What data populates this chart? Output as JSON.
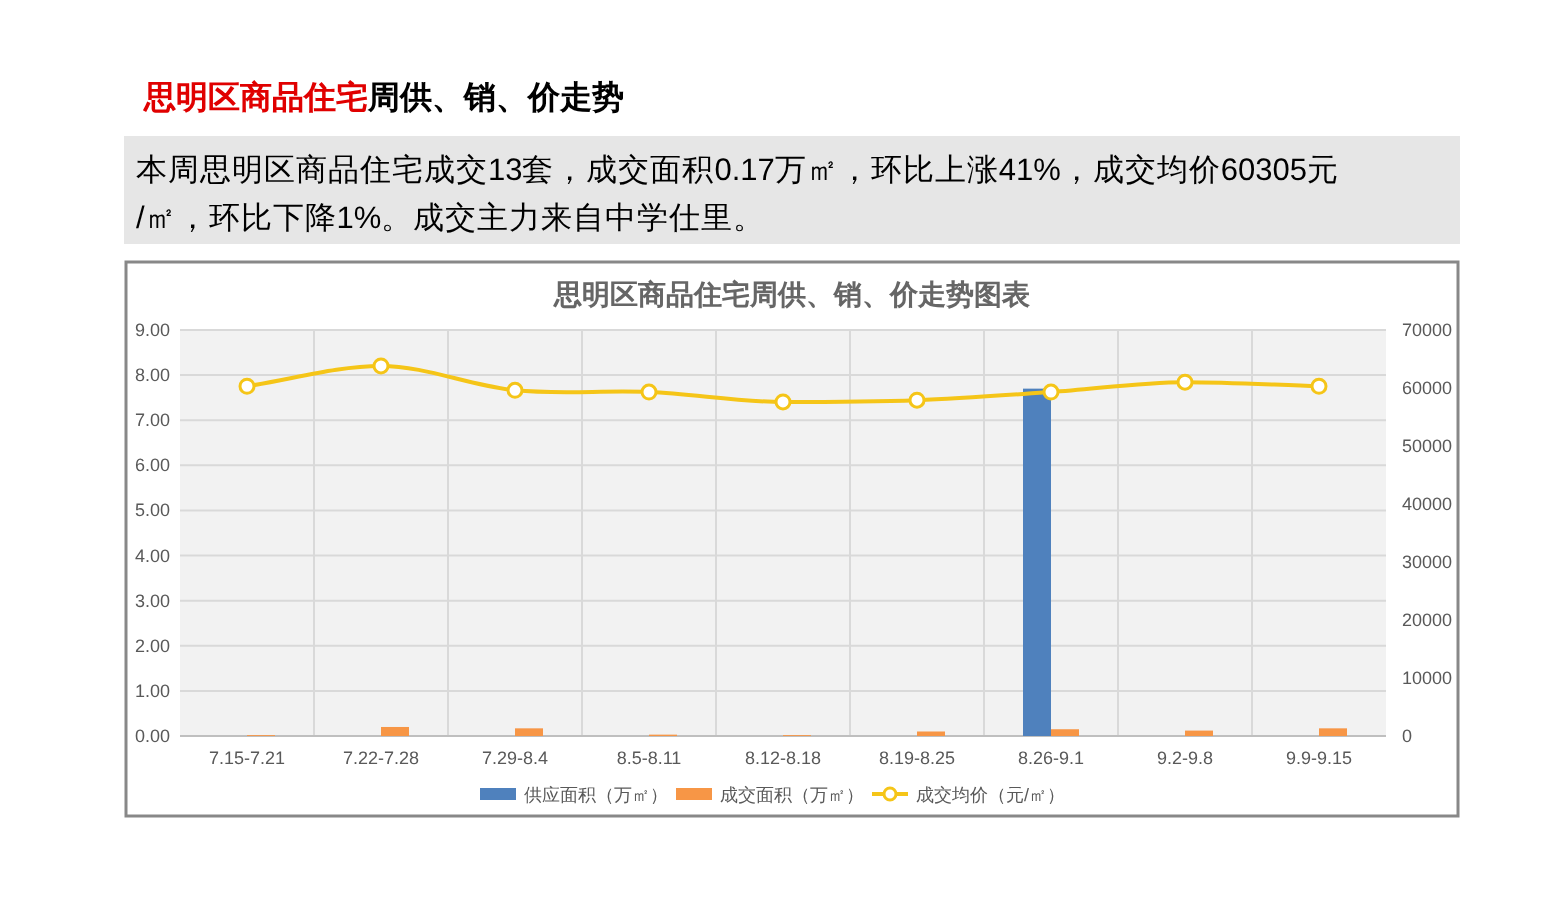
{
  "chart_data": {
    "type": "bar",
    "title": "思明区商品住宅周供、销、价走势",
    "subtitle": "本周思明区商品住宅成交13套，成交面积0.17万㎡，环比上涨41%，成交均价60305元/㎡，环比下降1%。成交主力来自中学仕里。",
    "annotations": [
      "思明区商品住宅周供、销、价走势图表"
    ],
    "categories": [
      "7.15-7.21",
      "7.22-7.28",
      "7.29-8.4",
      "8.5-8.11",
      "8.12-8.18",
      "8.19-8.25",
      "8.26-9.1",
      "9.2-9.8",
      "9.9-9.15"
    ],
    "series": [
      {
        "name": "供应面积（万㎡）",
        "color": "#4f81bd",
        "values": [
          0,
          0,
          0,
          0,
          0,
          0,
          7.7,
          0,
          0
        ]
      },
      {
        "name": "成交面积（万㎡）",
        "color": "#f79646",
        "values": [
          0.02,
          0.2,
          0.17,
          0.03,
          0.02,
          0.1,
          0.15,
          0.12,
          0.17
        ]
      },
      {
        "name": "成交均价（元/㎡）",
        "type": "line",
        "axis": "y2",
        "color": "#f5c518",
        "marker": "circle",
        "values": [
          60300,
          63800,
          59600,
          59300,
          57600,
          57900,
          59300,
          61000,
          60300
        ]
      }
    ],
    "ylim": [
      0,
      9
    ],
    "yticks": [
      {
        "value": 0,
        "label": "0.00"
      },
      {
        "value": 1,
        "label": "1.00"
      },
      {
        "value": 2,
        "label": "2.00"
      },
      {
        "value": 3,
        "label": "3.00"
      },
      {
        "value": 4,
        "label": "4.00"
      },
      {
        "value": 5,
        "label": "5.00"
      },
      {
        "value": 6,
        "label": "6.00"
      },
      {
        "value": 7,
        "label": "7.00"
      },
      {
        "value": 8,
        "label": "8.00"
      },
      {
        "value": 9,
        "label": "9.00"
      }
    ],
    "y2lim": [
      0,
      70000
    ],
    "y2ticks": [
      0,
      10000,
      20000,
      30000,
      40000,
      50000,
      60000,
      70000
    ],
    "grid": true,
    "legend": "bottom"
  }
}
